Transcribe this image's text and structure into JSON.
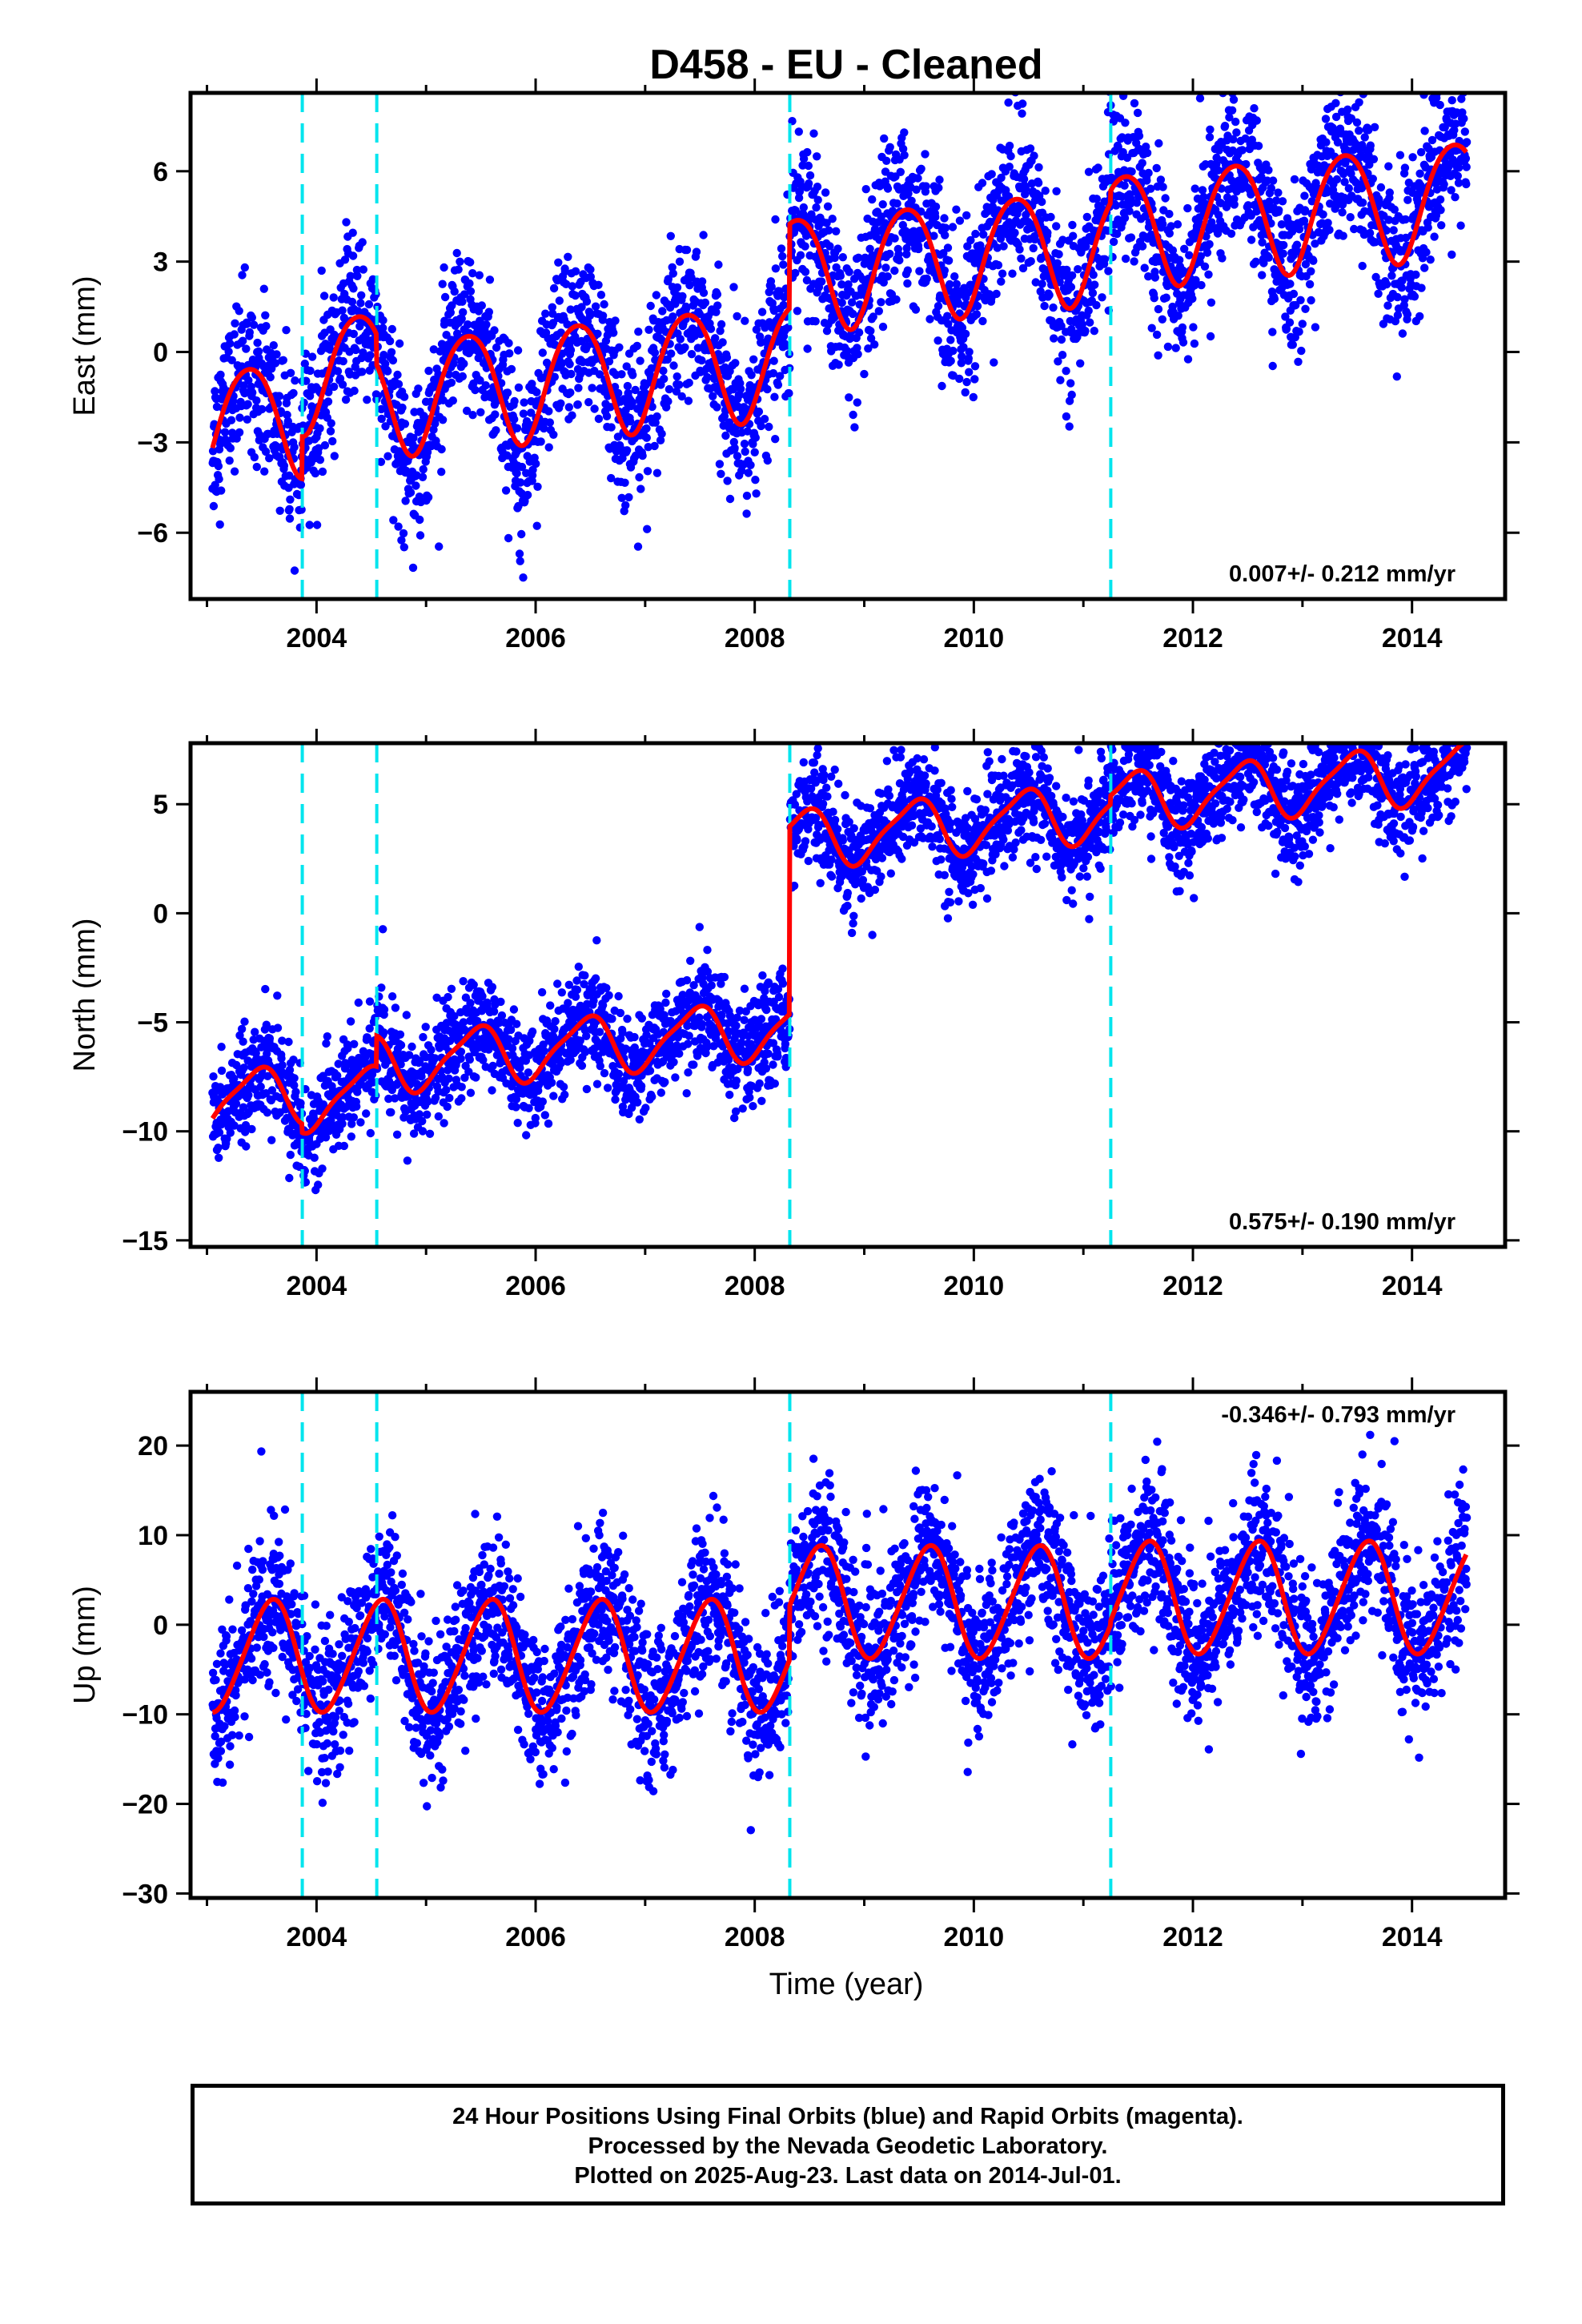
{
  "title": "D458  - EU - Cleaned",
  "xlabel": "Time (year)",
  "footer": {
    "line1": "24 Hour Positions Using Final Orbits (blue) and Rapid Orbits (magenta).",
    "line2": "Processed by the Nevada Geodetic Laboratory.",
    "line3": "Plotted on 2025-Aug-23. Last data on 2014-Jul-01."
  },
  "colors": {
    "points": "#0000ff",
    "model": "#ff0000",
    "steps": "#00e5ee",
    "frame": "#000000"
  },
  "chart_data": [
    {
      "type": "scatter",
      "component": "East",
      "ylabel": "East (mm)",
      "rate_text": "0.007+/- 0.212 mm/yr",
      "xlim": [
        2002.85,
        2014.85
      ],
      "ylim": [
        -8.2,
        8.6
      ],
      "xticks": [
        2004,
        2006,
        2008,
        2010,
        2012,
        2014
      ],
      "yticks": [
        -6,
        -3,
        0,
        3,
        6
      ],
      "steps": [
        2003.87,
        2004.55,
        2008.32,
        2011.25
      ],
      "data_range": [
        2003.05,
        2014.5
      ],
      "model": {
        "offsets": [
          [
            2003.05,
            -2.4
          ],
          [
            2003.87,
            -1.0
          ],
          [
            2004.55,
            -2.0
          ],
          [
            2008.32,
            0.8
          ],
          [
            2011.25,
            1.2
          ]
        ],
        "trend": 0.35,
        "annual_amp": 1.9,
        "annual_phase": 0.38,
        "semi_amp": 0.2,
        "semi_phase": 0.12
      },
      "scatter_sd": 1.3
    },
    {
      "type": "scatter",
      "component": "North",
      "ylabel": "North (mm)",
      "rate_text": "0.575+/- 0.190 mm/yr",
      "xlim": [
        2002.85,
        2014.85
      ],
      "ylim": [
        -15.3,
        7.8
      ],
      "xticks": [
        2004,
        2006,
        2008,
        2010,
        2012,
        2014
      ],
      "yticks": [
        -15,
        -10,
        -5,
        0,
        5
      ],
      "steps": [
        2003.87,
        2004.55,
        2008.32,
        2011.25
      ],
      "data_range": [
        2003.05,
        2014.5
      ],
      "model": {
        "offsets": [
          [
            2003.05,
            -8.6
          ],
          [
            2003.87,
            -9.0
          ],
          [
            2004.55,
            -7.6
          ],
          [
            2008.32,
            1.0
          ],
          [
            2011.25,
            1.4
          ]
        ],
        "trend": 0.45,
        "annual_amp": 1.3,
        "annual_phase": 0.45,
        "semi_amp": 0.3,
        "semi_phase": 0.1
      },
      "scatter_sd": 1.2
    },
    {
      "type": "scatter",
      "component": "Up",
      "ylabel": "Up (mm)",
      "rate_text": "-0.346+/- 0.793 mm/yr",
      "xlim": [
        2002.85,
        2014.85
      ],
      "ylim": [
        -30.5,
        26.0
      ],
      "xticks": [
        2004,
        2006,
        2008,
        2010,
        2012,
        2014
      ],
      "yticks": [
        -30,
        -20,
        -10,
        0,
        10,
        20
      ],
      "steps": [
        2003.87,
        2004.55,
        2008.32,
        2011.25
      ],
      "data_range": [
        2003.05,
        2014.5
      ],
      "model": {
        "offsets": [
          [
            2003.05,
            -3.5
          ],
          [
            2003.87,
            -3.5
          ],
          [
            2004.55,
            -3.5
          ],
          [
            2008.32,
            2.5
          ],
          [
            2011.25,
            3.0
          ]
        ],
        "trend": 0.0,
        "annual_amp": 6.2,
        "annual_phase": 0.58,
        "semi_amp": 0.6,
        "semi_phase": 0.2
      },
      "scatter_sd": 4.2
    }
  ]
}
